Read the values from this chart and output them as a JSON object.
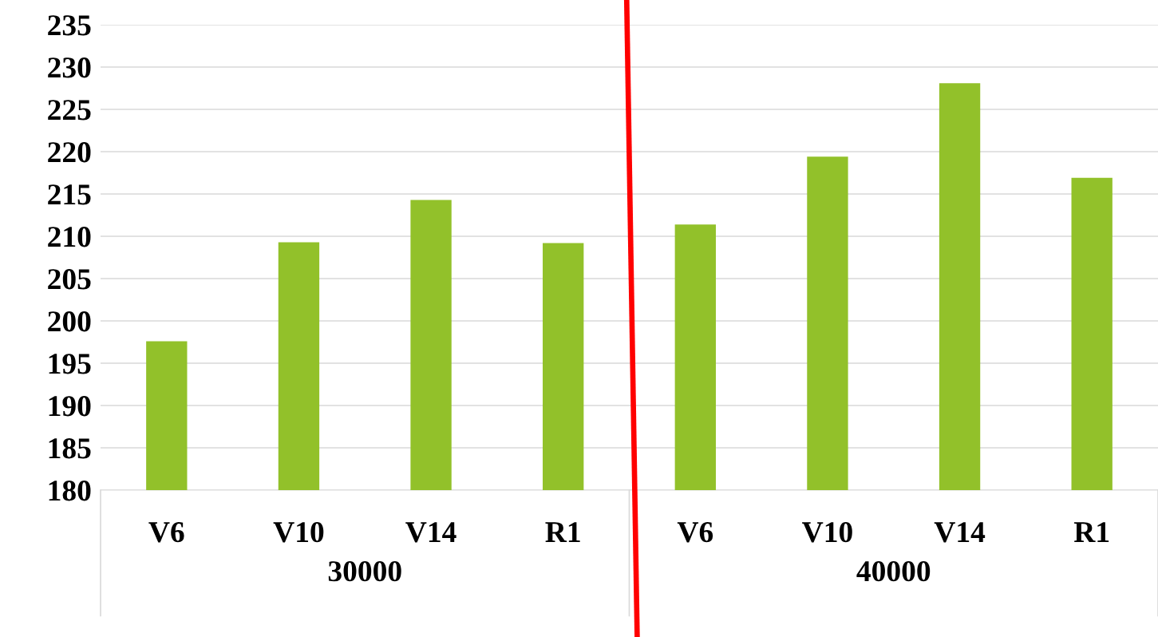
{
  "chart_data": {
    "type": "bar",
    "categories": [
      "V6",
      "V10",
      "V14",
      "R1",
      "V6",
      "V10",
      "V14",
      "R1"
    ],
    "values": [
      197.6,
      209.3,
      214.3,
      209.2,
      211.4,
      219.4,
      228.1,
      216.9
    ],
    "color": "#92c12a",
    "ylim": [
      180,
      235
    ],
    "yticks": [
      180,
      185,
      190,
      195,
      200,
      205,
      210,
      215,
      220,
      225,
      230,
      235
    ],
    "grid": "y",
    "annotations": [
      "30000",
      "40000"
    ]
  }
}
